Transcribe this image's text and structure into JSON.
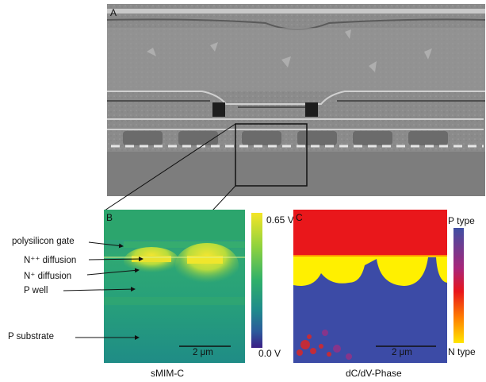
{
  "panels": {
    "a": {
      "letter": "A"
    },
    "b": {
      "letter": "B",
      "caption": "sMIM-C",
      "colorbar_top": "0.65 V",
      "colorbar_bottom": "0.0 V",
      "scalebar": "2 μm"
    },
    "c": {
      "letter": "C",
      "caption": "dC/dV-Phase",
      "colorbar_top": "P type",
      "colorbar_bottom": "N type",
      "scalebar": "2 μm"
    }
  },
  "annotations": {
    "polysilicon_gate": "polysilicon gate",
    "npp_diffusion": "N⁺⁺ diffusion",
    "np_diffusion": "N⁺ diffusion",
    "p_well": "P well",
    "p_substrate": "P substrate"
  },
  "colors": {
    "smim_colormap": [
      "#3b1e86",
      "#2c5a9b",
      "#1f8a8c",
      "#2fb06a",
      "#8fd23e",
      "#f4e526"
    ],
    "phase_colormap": [
      "#ffe600",
      "#ff7f00",
      "#e8151b",
      "#a8267a",
      "#3f4fa3"
    ],
    "sem_gray": "#8a8a8a"
  }
}
